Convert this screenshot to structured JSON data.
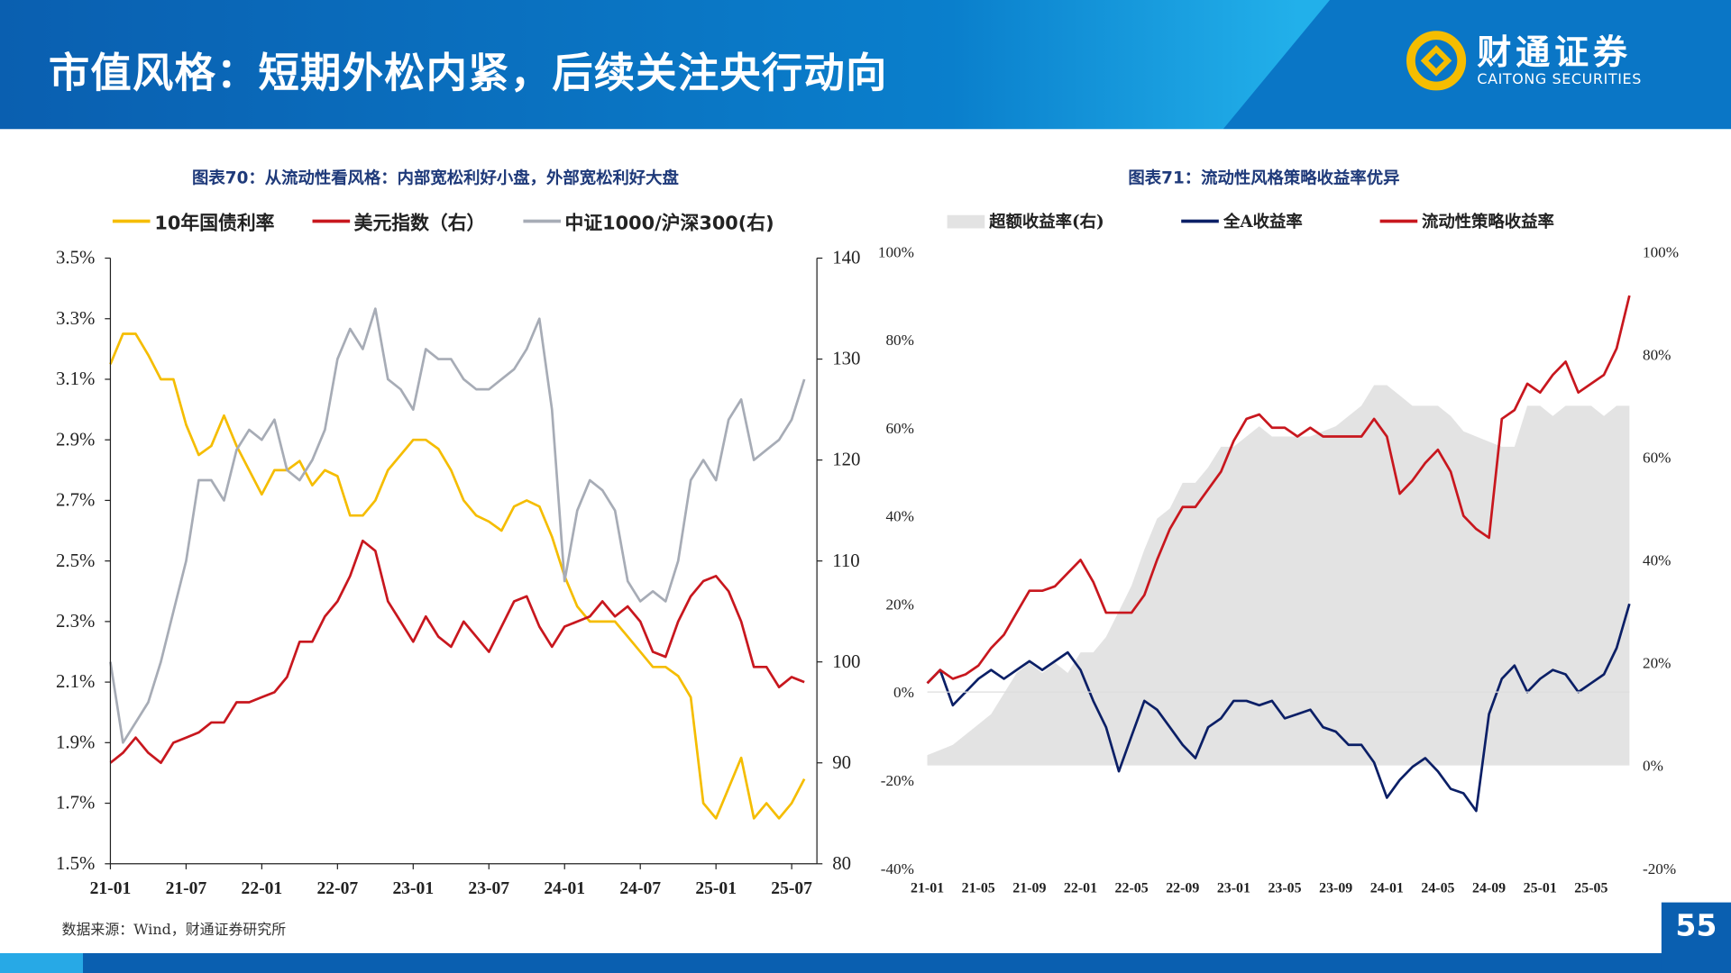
{
  "header": {
    "title": "市值风格：短期外松内紧，后续关注央行动向",
    "logo_cn": "财通证券",
    "logo_en": "CAITONG SECURITIES"
  },
  "colors": {
    "header_blue": "#0a5fb0",
    "yellow": "#f5bd00",
    "red": "#c8171e",
    "gray": "#a7acb6",
    "navy": "#0b1f66",
    "shade": "#e3e3e3"
  },
  "source": "数据来源：Wind，财通证券研究所",
  "page_number": "55",
  "chart_data": [
    {
      "type": "line",
      "title": "图表70：从流动性看风格：内部宽松利好小盘，外部宽松利好大盘",
      "x_ticks": [
        "21-01",
        "21-07",
        "22-01",
        "22-07",
        "23-01",
        "23-07",
        "24-01",
        "24-07",
        "25-01",
        "25-07"
      ],
      "x_start": "21-01",
      "x_end": "25-08",
      "y_left": {
        "ticks": [
          "1.5%",
          "1.7%",
          "1.9%",
          "2.1%",
          "2.3%",
          "2.5%",
          "2.7%",
          "2.9%",
          "3.1%",
          "3.3%",
          "3.5%"
        ],
        "range": [
          1.5,
          3.5
        ]
      },
      "y_right": {
        "ticks": [
          "80",
          "90",
          "100",
          "110",
          "120",
          "130",
          "140"
        ],
        "range": [
          80,
          140
        ]
      },
      "legend_position": "top",
      "series": [
        {
          "name": "10年国债利率",
          "axis": "left",
          "color": "#f5bd00",
          "values": [
            3.15,
            3.25,
            3.25,
            3.18,
            3.1,
            3.1,
            2.95,
            2.85,
            2.88,
            2.98,
            2.88,
            2.8,
            2.72,
            2.8,
            2.8,
            2.83,
            2.75,
            2.8,
            2.78,
            2.65,
            2.65,
            2.7,
            2.8,
            2.85,
            2.9,
            2.9,
            2.87,
            2.8,
            2.7,
            2.65,
            2.63,
            2.6,
            2.68,
            2.7,
            2.68,
            2.58,
            2.45,
            2.35,
            2.3,
            2.3,
            2.3,
            2.25,
            2.2,
            2.15,
            2.15,
            2.12,
            2.05,
            1.7,
            1.65,
            1.75,
            1.85,
            1.65,
            1.7,
            1.65,
            1.7,
            1.78
          ]
        },
        {
          "name": "美元指数（右）",
          "axis": "right",
          "color": "#c8171e",
          "values": [
            90,
            91,
            92.5,
            91,
            90,
            92,
            92.5,
            93,
            94,
            94,
            96,
            96,
            96.5,
            97,
            98.5,
            102,
            102,
            104.5,
            106,
            108.5,
            112,
            111,
            106,
            104,
            102,
            104.5,
            102.5,
            101.5,
            104,
            102.5,
            101,
            103.5,
            106,
            106.5,
            103.5,
            101.5,
            103.5,
            104,
            104.5,
            106,
            104.5,
            105.5,
            104,
            101,
            100.5,
            104,
            106.5,
            108,
            108.5,
            107,
            104,
            99.5,
            99.5,
            97.5,
            98.5,
            98
          ]
        },
        {
          "name": "中证1000/沪深300(右)",
          "axis": "right",
          "color": "#a7acb6",
          "values": [
            100,
            92,
            94,
            96,
            100,
            105,
            110,
            118,
            118,
            116,
            121,
            123,
            122,
            124,
            119,
            118,
            120,
            123,
            130,
            133,
            131,
            135,
            128,
            127,
            125,
            131,
            130,
            130,
            128,
            127,
            127,
            128,
            129,
            131,
            134,
            125,
            108,
            115,
            118,
            117,
            115,
            108,
            106,
            107,
            106,
            110,
            118,
            120,
            118,
            124,
            126,
            120,
            121,
            122,
            124,
            128
          ]
        }
      ]
    },
    {
      "type": "line",
      "title": "图表71：流动性风格策略收益率优异",
      "x_ticks": [
        "21-01",
        "21-05",
        "21-09",
        "22-01",
        "22-05",
        "22-09",
        "23-01",
        "23-05",
        "23-09",
        "24-01",
        "24-05",
        "24-09",
        "25-01",
        "25-05"
      ],
      "x_start": "21-01",
      "x_end": "25-08",
      "y_left": {
        "ticks": [
          "-40%",
          "-20%",
          "0%",
          "20%",
          "40%",
          "60%",
          "80%",
          "100%"
        ],
        "range": [
          -40,
          100
        ]
      },
      "y_right": {
        "ticks": [
          "-20%",
          "0%",
          "20%",
          "40%",
          "60%",
          "80%",
          "100%"
        ],
        "range": [
          -20,
          100
        ]
      },
      "legend_position": "top",
      "series": [
        {
          "name": "超额收益率(右)",
          "axis": "right",
          "type": "area",
          "color": "#e3e3e3",
          "values": [
            2,
            3,
            4,
            6,
            8,
            10,
            14,
            18,
            20,
            18,
            20,
            18,
            22,
            22,
            25,
            30,
            35,
            42,
            48,
            50,
            55,
            55,
            58,
            62,
            62,
            64,
            66,
            64,
            64,
            64,
            64,
            65,
            66,
            68,
            70,
            74,
            74,
            72,
            70,
            70,
            70,
            68,
            65,
            64,
            63,
            62,
            62,
            70,
            70,
            68,
            70,
            70,
            70,
            68,
            70,
            70
          ]
        },
        {
          "name": "全A收益率",
          "axis": "left",
          "color": "#0b1f66",
          "values": [
            2,
            5,
            -3,
            0,
            3,
            5,
            3,
            5,
            7,
            5,
            7,
            9,
            5,
            -2,
            -8,
            -18,
            -10,
            -2,
            -4,
            -8,
            -12,
            -15,
            -8,
            -6,
            -2,
            -2,
            -3,
            -2,
            -6,
            -5,
            -4,
            -8,
            -9,
            -12,
            -12,
            -16,
            -24,
            -20,
            -17,
            -15,
            -18,
            -22,
            -23,
            -27,
            -5,
            3,
            6,
            0,
            3,
            5,
            4,
            0,
            2,
            4,
            10,
            20
          ]
        },
        {
          "name": "流动性策略收益率",
          "axis": "left",
          "color": "#c8171e",
          "values": [
            2,
            5,
            3,
            4,
            6,
            10,
            13,
            18,
            23,
            23,
            24,
            27,
            30,
            25,
            18,
            18,
            18,
            22,
            30,
            37,
            42,
            42,
            46,
            50,
            57,
            62,
            63,
            60,
            60,
            58,
            60,
            58,
            58,
            58,
            58,
            62,
            58,
            45,
            48,
            52,
            55,
            50,
            40,
            37,
            35,
            62,
            64,
            70,
            68,
            72,
            75,
            68,
            70,
            72,
            78,
            90
          ]
        }
      ]
    }
  ]
}
